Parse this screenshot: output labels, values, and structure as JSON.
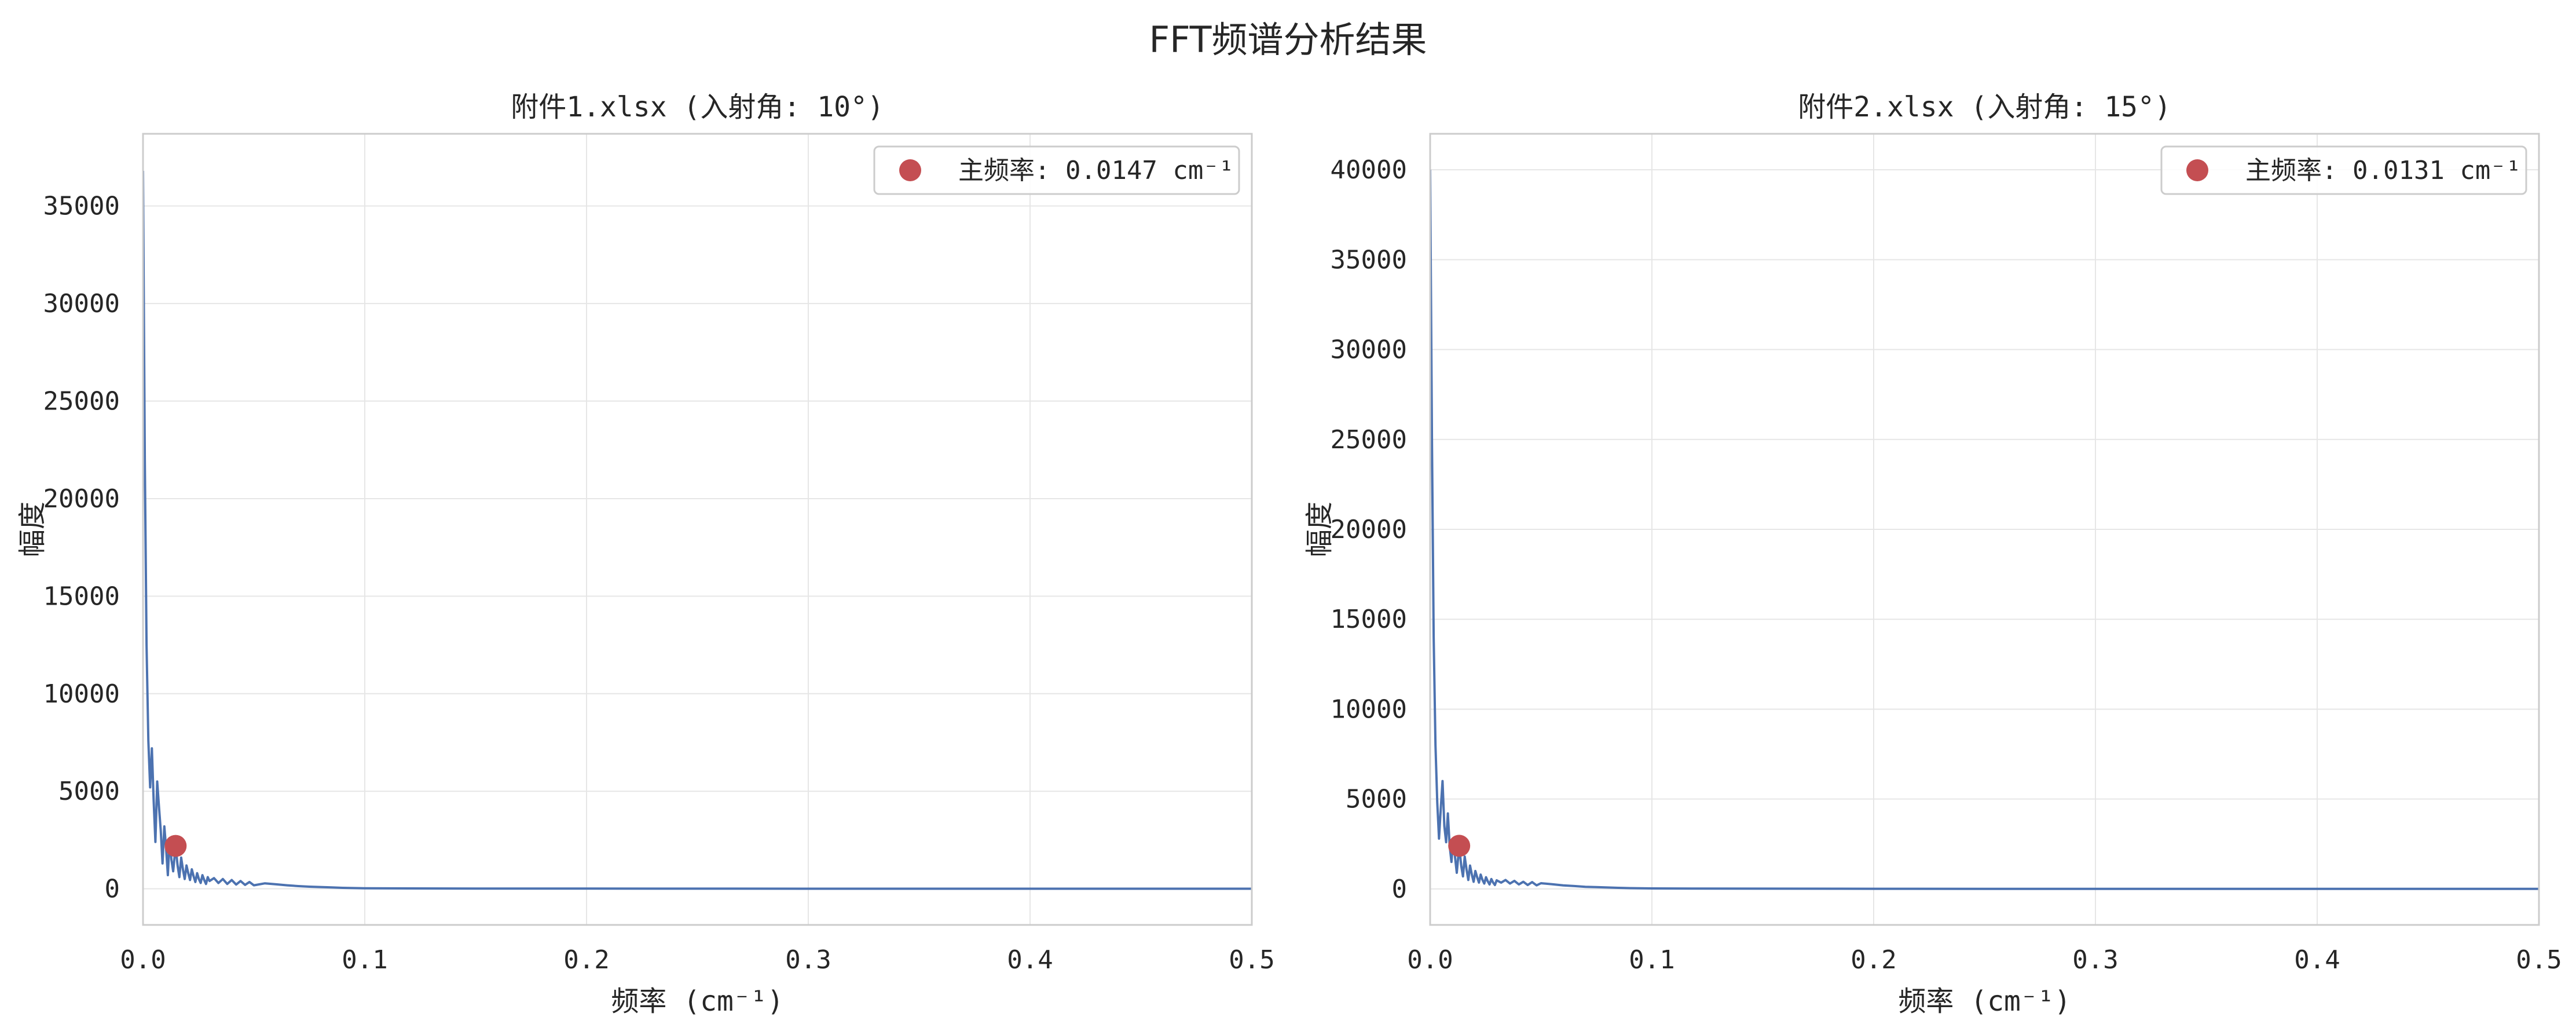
{
  "figure": {
    "suptitle": "FFT频谱分析结果"
  },
  "colors": {
    "line": "#4c72b0",
    "marker": "#c44e52",
    "grid": "#e6e6e6",
    "spine": "#cccccc",
    "text": "#262626"
  },
  "chart_data": [
    {
      "type": "line",
      "title": "附件1.xlsx (入射角: 10°)",
      "xlabel": "频率 (cm⁻¹)",
      "ylabel": "幅度",
      "xlim": [
        0.0,
        0.5
      ],
      "ylim": [
        -1850,
        38700
      ],
      "xticks": [
        0.0,
        0.1,
        0.2,
        0.3,
        0.4,
        0.5
      ],
      "xtick_labels": [
        "0.0",
        "0.1",
        "0.2",
        "0.3",
        "0.4",
        "0.5"
      ],
      "yticks": [
        0,
        5000,
        10000,
        15000,
        20000,
        25000,
        30000,
        35000
      ],
      "ytick_labels": [
        "0",
        "5000",
        "10000",
        "15000",
        "20000",
        "25000",
        "30000",
        "35000"
      ],
      "grid": true,
      "legend_position": "top-right",
      "legend_label": "主频率: 0.0147 cm⁻¹",
      "series": [
        {
          "x": [
            0.0,
            0.0008,
            0.0016,
            0.0024,
            0.0032,
            0.004,
            0.0048,
            0.0056,
            0.0064,
            0.0072,
            0.008,
            0.0088,
            0.0096,
            0.0104,
            0.0112,
            0.012,
            0.0128,
            0.0136,
            0.0147,
            0.0156,
            0.0164,
            0.0172,
            0.018,
            0.0188,
            0.0196,
            0.0204,
            0.0212,
            0.022,
            0.0228,
            0.0236,
            0.0244,
            0.0252,
            0.026,
            0.0268,
            0.0276,
            0.0284,
            0.0292,
            0.03,
            0.032,
            0.034,
            0.036,
            0.038,
            0.04,
            0.042,
            0.044,
            0.046,
            0.048,
            0.05,
            0.055,
            0.06,
            0.065,
            0.07,
            0.075,
            0.08,
            0.085,
            0.09,
            0.1,
            0.12,
            0.15,
            0.2,
            0.25,
            0.3,
            0.35,
            0.4,
            0.45,
            0.5
          ],
          "y": [
            36800,
            22000,
            12500,
            7600,
            5200,
            7200,
            4500,
            2400,
            5500,
            4200,
            3000,
            1300,
            3200,
            2100,
            700,
            2600,
            1500,
            900,
            2200,
            1200,
            600,
            1600,
            1000,
            500,
            1200,
            800,
            450,
            1000,
            650,
            350,
            800,
            500,
            300,
            700,
            450,
            250,
            600,
            400,
            550,
            300,
            500,
            250,
            450,
            220,
            400,
            200,
            350,
            180,
            280,
            230,
            180,
            140,
            110,
            90,
            70,
            50,
            30,
            20,
            15,
            10,
            8,
            6,
            5,
            5,
            5,
            5
          ]
        }
      ],
      "peak": {
        "x": 0.0147,
        "y": 2200
      }
    },
    {
      "type": "line",
      "title": "附件2.xlsx (入射角: 15°)",
      "xlabel": "频率 (cm⁻¹)",
      "ylabel": "幅度",
      "xlim": [
        0.0,
        0.5
      ],
      "ylim": [
        -2000,
        42000
      ],
      "xticks": [
        0.0,
        0.1,
        0.2,
        0.3,
        0.4,
        0.5
      ],
      "xtick_labels": [
        "0.0",
        "0.1",
        "0.2",
        "0.3",
        "0.4",
        "0.5"
      ],
      "yticks": [
        0,
        5000,
        10000,
        15000,
        20000,
        25000,
        30000,
        35000,
        40000
      ],
      "ytick_labels": [
        "0",
        "5000",
        "10000",
        "15000",
        "20000",
        "25000",
        "30000",
        "35000",
        "40000"
      ],
      "grid": true,
      "legend_position": "top-right",
      "legend_label": "主频率: 0.0131 cm⁻¹",
      "series": [
        {
          "x": [
            0.0,
            0.0008,
            0.0016,
            0.0024,
            0.0032,
            0.004,
            0.0048,
            0.0056,
            0.0064,
            0.0072,
            0.008,
            0.0088,
            0.0096,
            0.0104,
            0.0112,
            0.012,
            0.0131,
            0.014,
            0.0148,
            0.0156,
            0.0164,
            0.0172,
            0.018,
            0.0188,
            0.0196,
            0.0204,
            0.0212,
            0.022,
            0.0228,
            0.0236,
            0.0244,
            0.0252,
            0.026,
            0.0268,
            0.0276,
            0.0284,
            0.0292,
            0.03,
            0.032,
            0.034,
            0.036,
            0.038,
            0.04,
            0.042,
            0.044,
            0.046,
            0.048,
            0.05,
            0.055,
            0.06,
            0.065,
            0.07,
            0.075,
            0.08,
            0.085,
            0.09,
            0.1,
            0.12,
            0.15,
            0.2,
            0.25,
            0.3,
            0.35,
            0.4,
            0.45,
            0.5
          ],
          "y": [
            40000,
            25000,
            14000,
            8000,
            4800,
            2800,
            4500,
            6000,
            3500,
            2600,
            4200,
            2400,
            1500,
            2800,
            1800,
            900,
            2400,
            1300,
            700,
            1800,
            1100,
            500,
            1300,
            800,
            400,
            1000,
            650,
            350,
            800,
            500,
            300,
            650,
            420,
            250,
            550,
            350,
            220,
            480,
            350,
            500,
            300,
            450,
            250,
            400,
            220,
            380,
            200,
            320,
            260,
            200,
            160,
            120,
            100,
            80,
            60,
            45,
            30,
            20,
            15,
            10,
            8,
            6,
            5,
            5,
            5,
            5
          ]
        }
      ],
      "peak": {
        "x": 0.0131,
        "y": 2400
      }
    }
  ]
}
